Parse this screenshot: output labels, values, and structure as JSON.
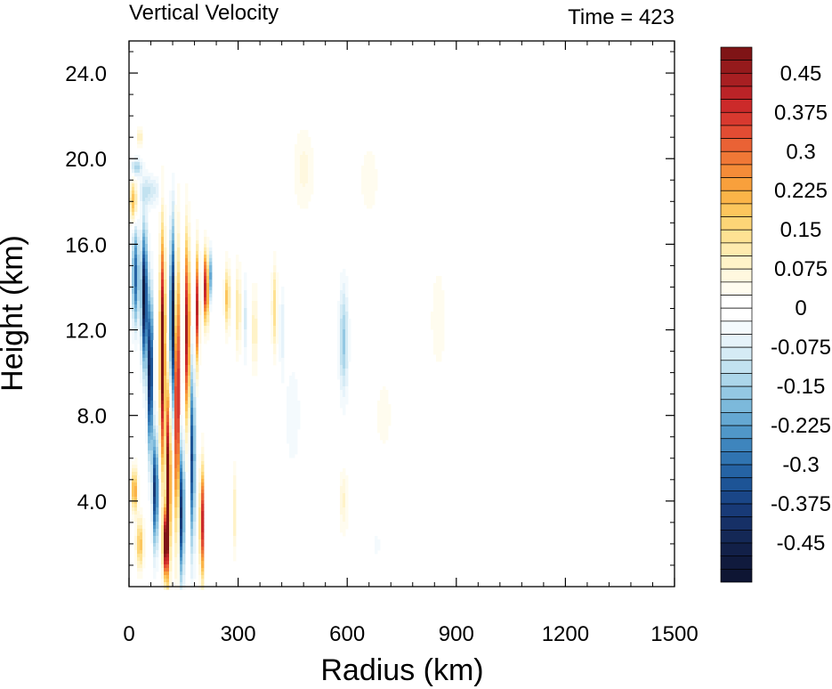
{
  "chart_data": {
    "type": "heatmap",
    "title": "Vertical Velocity",
    "subtitle": "Time = 423",
    "xlabel": "Radius (km)",
    "ylabel": "Height (km)",
    "xlim": [
      0,
      1500
    ],
    "ylim": [
      0,
      25.5
    ],
    "x_ticks": [
      0,
      300,
      600,
      900,
      1200,
      1500
    ],
    "x_tick_labels": [
      "0",
      "300",
      "600",
      "900",
      "1200",
      "1500"
    ],
    "y_ticks": [
      4,
      8,
      12,
      16,
      20,
      24
    ],
    "y_tick_labels": [
      "4.0",
      "8.0",
      "12.0",
      "16.0",
      "20.0",
      "24.0"
    ],
    "colorbar": {
      "label_values": [
        0.45,
        0.375,
        0.3,
        0.225,
        0.15,
        0.075,
        0,
        -0.075,
        -0.15,
        -0.225,
        -0.3,
        -0.375,
        -0.45
      ],
      "label_texts": [
        "0.45",
        "0.375",
        "0.3",
        "0.225",
        "0.15",
        "0.075",
        "0",
        "-0.075",
        "-0.15",
        "-0.225",
        "-0.3",
        "-0.375",
        "-0.45"
      ],
      "levels": [
        0.5,
        0.475,
        0.45,
        0.425,
        0.4,
        0.375,
        0.35,
        0.325,
        0.3,
        0.275,
        0.25,
        0.225,
        0.2,
        0.175,
        0.15,
        0.125,
        0.1,
        0.075,
        0.05,
        0.025,
        0,
        -0.025,
        -0.05,
        -0.075,
        -0.1,
        -0.125,
        -0.15,
        -0.175,
        -0.2,
        -0.225,
        -0.25,
        -0.275,
        -0.3,
        -0.325,
        -0.35,
        -0.375,
        -0.4,
        -0.425,
        -0.45,
        -0.475,
        -0.5
      ],
      "colors": [
        "#7f1416",
        "#951a1c",
        "#a81f22",
        "#bb2327",
        "#cc2a2a",
        "#d8392f",
        "#e24c33",
        "#ea6235",
        "#f07836",
        "#f58c38",
        "#f8a03c",
        "#fbb448",
        "#fcc65d",
        "#fdd577",
        "#fee293",
        "#feebae",
        "#fff3c8",
        "#fff8df",
        "#fffcef",
        "#ffffff",
        "#ffffff",
        "#f4fafd",
        "#e6f3fa",
        "#d5ebf5",
        "#c2e2f0",
        "#acd6ea",
        "#94c8e3",
        "#7cb9db",
        "#65a8d2",
        "#5097c8",
        "#3e85bd",
        "#3074b1",
        "#2563a4",
        "#1d5496",
        "#1a4687",
        "#183a77",
        "#163066",
        "#142856",
        "#122048",
        "#101a3d",
        "#0e1533"
      ]
    },
    "field_features": [
      {
        "r": 18,
        "z": 14.5,
        "sr": 9,
        "sz": 2.2,
        "w": -0.32
      },
      {
        "r": 42,
        "z": 13.5,
        "sr": 8,
        "sz": 3.0,
        "w": -0.5
      },
      {
        "r": 58,
        "z": 10.0,
        "sr": 7,
        "sz": 3.5,
        "w": -0.5
      },
      {
        "r": 72,
        "z": 4.5,
        "sr": 7,
        "sz": 2.5,
        "w": -0.42
      },
      {
        "r": 92,
        "z": 11.0,
        "sr": 7,
        "sz": 5.0,
        "w": 0.55
      },
      {
        "r": 108,
        "z": 5.0,
        "sr": 6,
        "sz": 4.0,
        "w": 0.55
      },
      {
        "r": 100,
        "z": 2.0,
        "sr": 7,
        "sz": 1.5,
        "w": 0.5
      },
      {
        "r": 120,
        "z": 12.5,
        "sr": 7,
        "sz": 4.0,
        "w": -0.5
      },
      {
        "r": 132,
        "z": 9.0,
        "sr": 6,
        "sz": 6.0,
        "w": 0.55
      },
      {
        "r": 145,
        "z": 3.5,
        "sr": 6,
        "sz": 3.0,
        "w": -0.45
      },
      {
        "r": 160,
        "z": 12.0,
        "sr": 6,
        "sz": 4.0,
        "w": 0.5
      },
      {
        "r": 175,
        "z": 6.0,
        "sr": 5,
        "sz": 4.0,
        "w": -0.45
      },
      {
        "r": 188,
        "z": 13.0,
        "sr": 5,
        "sz": 2.5,
        "w": 0.42
      },
      {
        "r": 200,
        "z": 3.0,
        "sr": 5,
        "sz": 2.5,
        "w": 0.45
      },
      {
        "r": 212,
        "z": 14.0,
        "sr": 6,
        "sz": 1.6,
        "w": 0.5
      },
      {
        "r": 222,
        "z": 14.5,
        "sr": 5,
        "sz": 1.2,
        "w": -0.25
      },
      {
        "r": 12,
        "z": 18.0,
        "sr": 10,
        "sz": 1.0,
        "w": 0.22
      },
      {
        "r": 55,
        "z": 18.5,
        "sr": 30,
        "sz": 0.7,
        "w": -0.1
      },
      {
        "r": 20,
        "z": 19.6,
        "sr": 15,
        "sz": 0.4,
        "w": -0.15
      },
      {
        "r": 30,
        "z": 21.0,
        "sr": 8,
        "sz": 0.4,
        "w": 0.12
      },
      {
        "r": 15,
        "z": 4.5,
        "sr": 8,
        "sz": 1.0,
        "w": 0.25
      },
      {
        "r": 30,
        "z": 2.0,
        "sr": 10,
        "sz": 1.2,
        "w": 0.2
      },
      {
        "r": 270,
        "z": 13.5,
        "sr": 7,
        "sz": 1.5,
        "w": 0.2
      },
      {
        "r": 300,
        "z": 13.0,
        "sr": 6,
        "sz": 2.0,
        "w": 0.15
      },
      {
        "r": 320,
        "z": 12.5,
        "sr": 6,
        "sz": 2.0,
        "w": -0.08
      },
      {
        "r": 345,
        "z": 12.0,
        "sr": 6,
        "sz": 2.0,
        "w": 0.12
      },
      {
        "r": 400,
        "z": 13.0,
        "sr": 7,
        "sz": 2.0,
        "w": 0.15
      },
      {
        "r": 420,
        "z": 12.0,
        "sr": 6,
        "sz": 2.0,
        "w": -0.08
      },
      {
        "r": 290,
        "z": 3.5,
        "sr": 6,
        "sz": 2.0,
        "w": 0.1
      },
      {
        "r": 480,
        "z": 19.5,
        "sr": 30,
        "sz": 2.0,
        "w": 0.06
      },
      {
        "r": 590,
        "z": 11.5,
        "sr": 12,
        "sz": 2.5,
        "w": -0.16
      },
      {
        "r": 590,
        "z": 4.0,
        "sr": 12,
        "sz": 1.5,
        "w": 0.08
      },
      {
        "r": 850,
        "z": 12.5,
        "sr": 25,
        "sz": 3.0,
        "w": 0.04
      },
      {
        "r": 660,
        "z": 19.0,
        "sr": 30,
        "sz": 2.0,
        "w": 0.04
      },
      {
        "r": 450,
        "z": 8.0,
        "sr": 25,
        "sz": 3.0,
        "w": -0.04
      },
      {
        "r": 700,
        "z": 8.0,
        "sr": 40,
        "sz": 3.0,
        "w": 0.03
      },
      {
        "r": 680,
        "z": 2.0,
        "sr": 20,
        "sz": 1.0,
        "w": -0.03
      }
    ]
  }
}
